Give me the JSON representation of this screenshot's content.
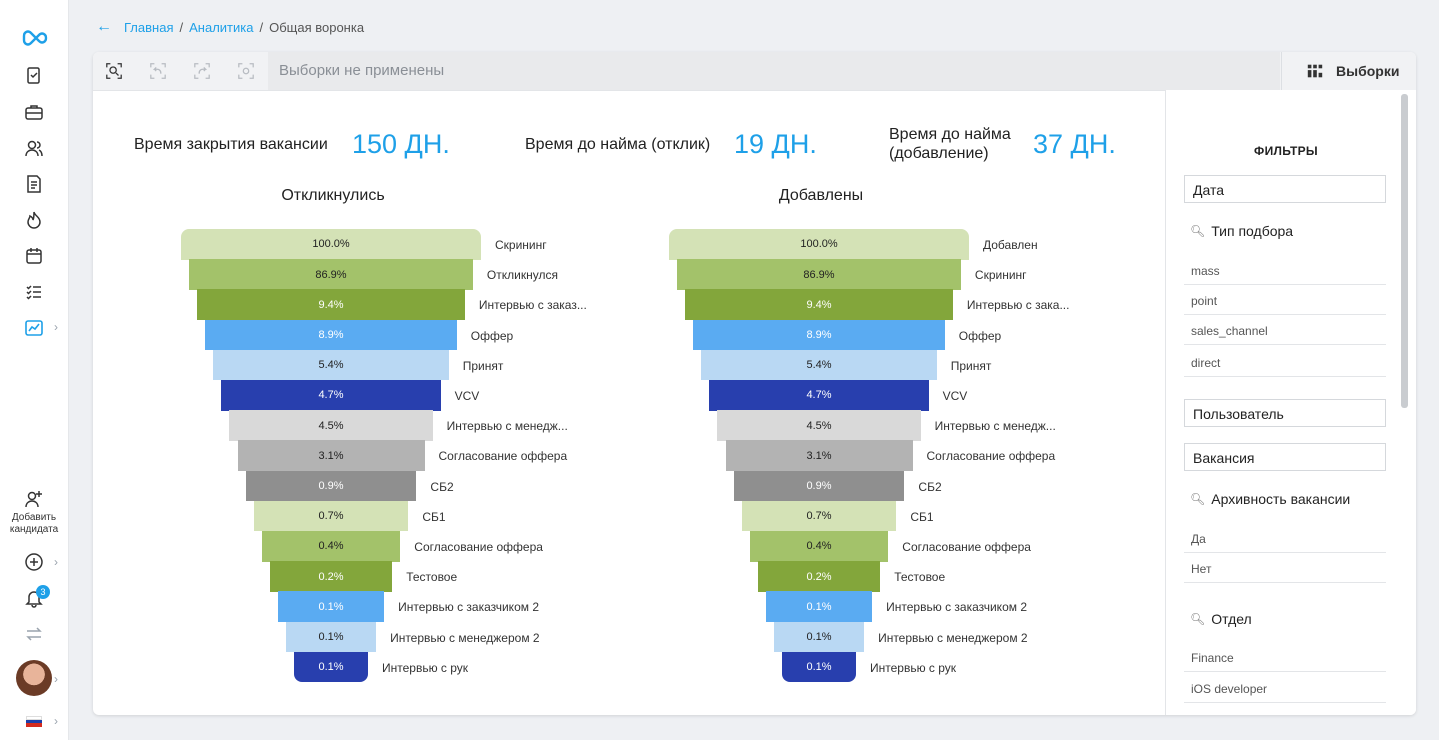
{
  "breadcrumb": {
    "home": "Главная",
    "analytics": "Аналитика",
    "current": "Общая воронка",
    "sep": "/"
  },
  "sidebar": {
    "add_candidate": "Добавить кандидата",
    "notifications_count": "3"
  },
  "toolbar": {
    "filter_placeholder": "Выборки не применены",
    "selections_label": "Выборки"
  },
  "metrics": [
    {
      "label": "Время закрытия вакансии",
      "value": "150 ДН."
    },
    {
      "label": "Время до найма (отклик)",
      "value": "19 ДН."
    },
    {
      "label": "Время до найма (добавление)",
      "value": "37 ДН."
    }
  ],
  "funnels": [
    {
      "title": "Откликнулись",
      "stages": [
        {
          "value": "100.0%",
          "label": "Скрининг"
        },
        {
          "value": "86.9%",
          "label": "Откликнулся"
        },
        {
          "value": "9.4%",
          "label": "Интервью с заказ..."
        },
        {
          "value": "8.9%",
          "label": "Оффер"
        },
        {
          "value": "5.4%",
          "label": "Принят"
        },
        {
          "value": "4.7%",
          "label": "VCV"
        },
        {
          "value": "4.5%",
          "label": "Интервью с менедж..."
        },
        {
          "value": "3.1%",
          "label": "Согласование оффера"
        },
        {
          "value": "0.9%",
          "label": "СБ2"
        },
        {
          "value": "0.7%",
          "label": "СБ1"
        },
        {
          "value": "0.4%",
          "label": "Согласование оффера"
        },
        {
          "value": "0.2%",
          "label": "Тестовое"
        },
        {
          "value": "0.1%",
          "label": "Интервью с заказчиком 2"
        },
        {
          "value": "0.1%",
          "label": "Интервью с менеджером 2"
        },
        {
          "value": "0.1%",
          "label": "Интервью с рук"
        }
      ]
    },
    {
      "title": "Добавлены",
      "stages": [
        {
          "value": "100.0%",
          "label": "Добавлен"
        },
        {
          "value": "86.9%",
          "label": "Скрининг"
        },
        {
          "value": "9.4%",
          "label": "Интервью с зака..."
        },
        {
          "value": "8.9%",
          "label": "Оффер"
        },
        {
          "value": "5.4%",
          "label": "Принят"
        },
        {
          "value": "4.7%",
          "label": "VCV"
        },
        {
          "value": "4.5%",
          "label": "Интервью с менедж..."
        },
        {
          "value": "3.1%",
          "label": "Согласование оффера"
        },
        {
          "value": "0.9%",
          "label": "СБ2"
        },
        {
          "value": "0.7%",
          "label": "СБ1"
        },
        {
          "value": "0.4%",
          "label": "Согласование оффера"
        },
        {
          "value": "0.2%",
          "label": "Тестовое"
        },
        {
          "value": "0.1%",
          "label": "Интервью с заказчиком 2"
        },
        {
          "value": "0.1%",
          "label": "Интервью с менеджером 2"
        },
        {
          "value": "0.1%",
          "label": "Интервью с рук"
        }
      ]
    }
  ],
  "stage_colors": [
    "#d4e2b6",
    "#a3c26a",
    "#83a63b",
    "#5aabf2",
    "#b9d8f3",
    "#283fae",
    "#d9d9d9",
    "#b3b3b3",
    "#8f8f8f",
    "#d4e2b6",
    "#a3c26a",
    "#83a63b",
    "#5aabf2",
    "#b9d8f3",
    "#283fae"
  ],
  "filters": {
    "title": "ФИЛЬТРЫ",
    "date": "Дата",
    "selection_type": {
      "title": "Тип подбора",
      "items": [
        "mass",
        "point",
        "sales_channel",
        "direct"
      ]
    },
    "user": "Пользователь",
    "vacancy": "Вакансия",
    "archive": {
      "title": "Архивность вакансии",
      "items": [
        "Да",
        "Нет"
      ]
    },
    "department": {
      "title": "Отдел",
      "items": [
        "Finance",
        "iOS developer"
      ]
    }
  }
}
